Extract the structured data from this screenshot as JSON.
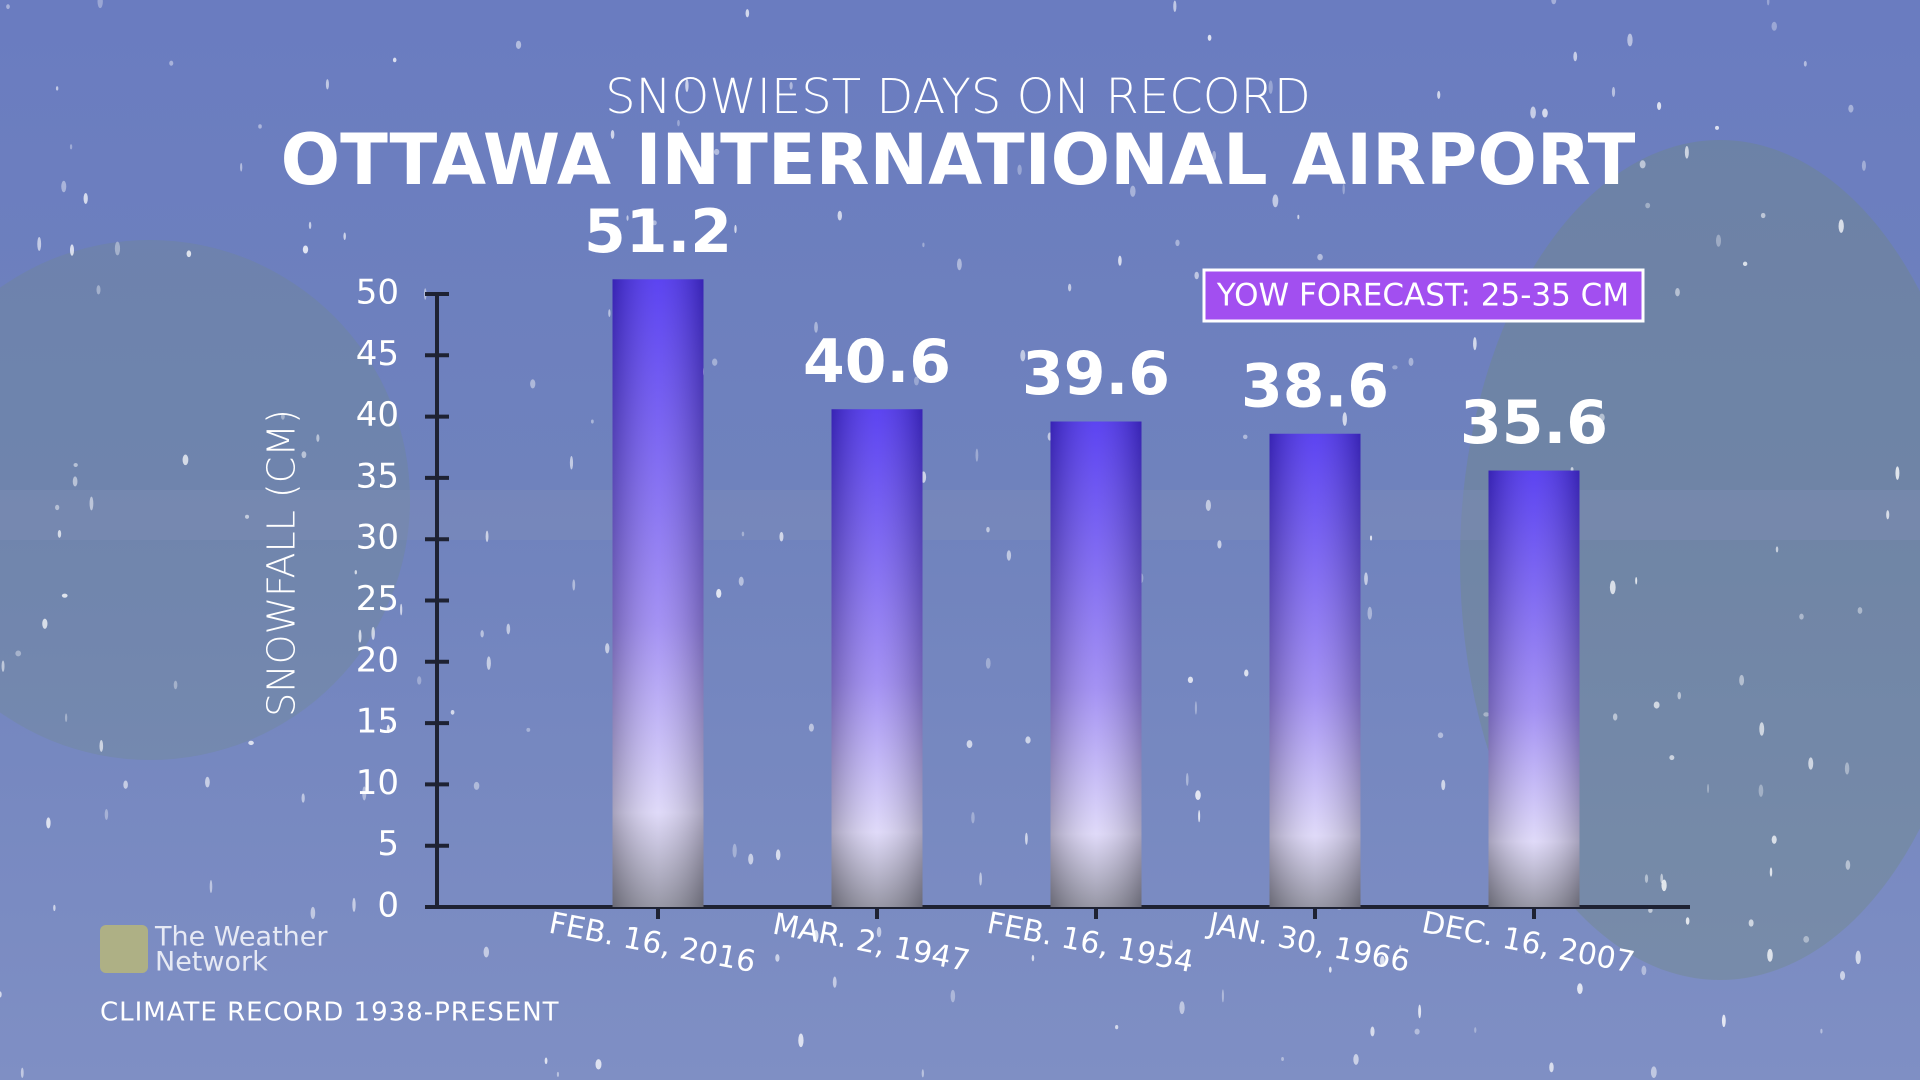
{
  "chart_data": {
    "type": "bar",
    "subtitle": "SNOWIEST DAYS ON RECORD",
    "title": "OTTAWA INTERNATIONAL AIRPORT",
    "y_label": "SNOWFALL (CM)",
    "categories": [
      "FEB. 16, 2016",
      "MAR. 2, 1947",
      "FEB. 16, 1954",
      "JAN. 30, 1966",
      "DEC. 16, 2007"
    ],
    "values": [
      51.2,
      40.6,
      39.6,
      38.6,
      35.6
    ],
    "ylim": [
      0,
      50
    ],
    "yticks": [
      0,
      5,
      10,
      15,
      20,
      25,
      30,
      35,
      40,
      45,
      50
    ],
    "color": "#4a2ff0",
    "annotation": "YOW FORECAST: 25-35 CM",
    "footnote": "CLIMATE RECORD 1938-PRESENT",
    "logo": [
      "The Weather",
      "Network"
    ]
  }
}
